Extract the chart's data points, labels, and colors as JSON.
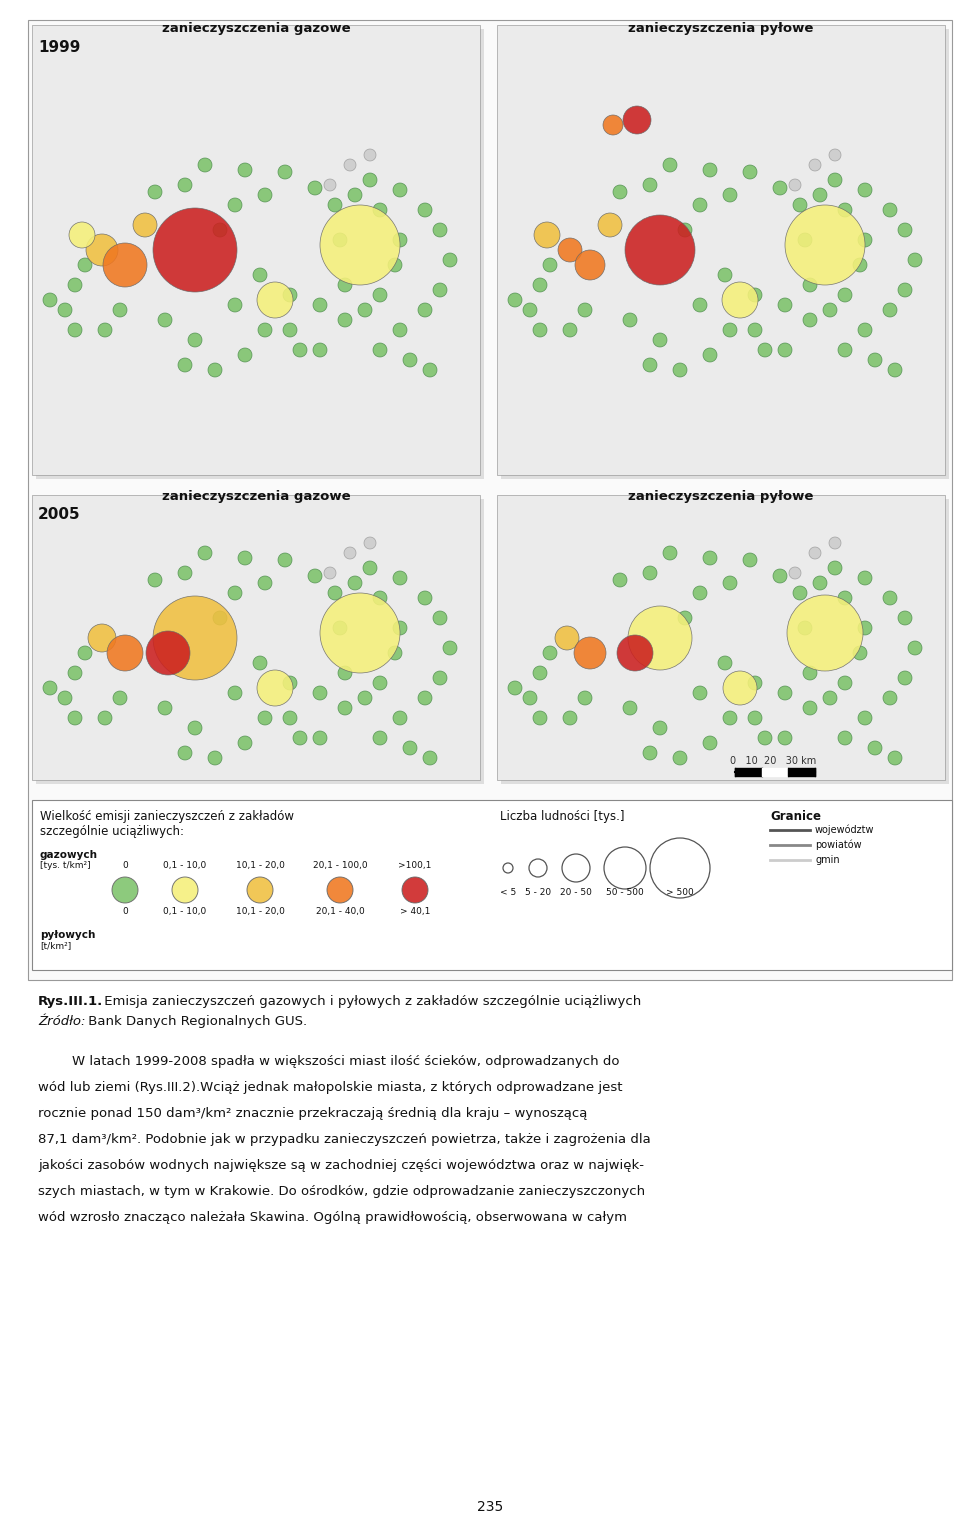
{
  "figure_bg": "#ffffff",
  "title_1999": "1999",
  "title_2005": "2005",
  "label_gaz": "zanieczyszczenia gazowe",
  "label_pyl": "zanieczyszczenia pyłowe",
  "legend_title1": "Wielkość emisji zanieczyszczeń z zakładów",
  "legend_title2": "szczególnie uciążliwych:",
  "legend_gaz_label": "gazowych",
  "legend_gaz_unit": "[tys. t/km²]",
  "legend_pyl_label": "pyłowych",
  "legend_pyl_unit": "[t/km²]",
  "legend_values_gaz": [
    "0",
    "0,1 - 10,0",
    "10,1 - 20,0",
    "20,1 - 100,0",
    ">100,1"
  ],
  "legend_values_pyl": [
    "0",
    "0,1 - 10,0",
    "10,1 - 20,0",
    "20,1 - 40,0",
    "> 40,1"
  ],
  "circle_colors": [
    "#7dc36b",
    "#f5f07a",
    "#f0c040",
    "#f07820",
    "#cc2020"
  ],
  "legend_pop_title": "Liczba ludności [tys.]",
  "legend_pop_labels": [
    "< 5",
    "5 - 20",
    "20 - 50",
    "50 - 500",
    "> 500"
  ],
  "legend_pop_sizes": [
    5,
    9,
    14,
    21,
    30
  ],
  "legend_borders_title": "Granice",
  "legend_borders_items": [
    "województw",
    "powiatów",
    "gmin"
  ],
  "legend_borders_colors": [
    "#555555",
    "#888888",
    "#cccccc"
  ],
  "caption_bold": "Rys.III.1.",
  "caption_text": " Emisja zanieczyszczeń gazowych i pyłowych z zakładów szczególnie uciążliwych",
  "source_italic": "Źródło:",
  "source_text": " Bank Danych Regionalnych GUS.",
  "body_lines": [
    "        W latach 1999-2008 spadła w większości miast ilość ścieków, odprowadzanych do",
    "wód lub ziemi (Rys.III.2).Wciąż jednak małopolskie miasta, z których odprowadzane jest",
    "rocznie ponad 150 dam³/km² znacznie przekraczają średnią dla kraju – wynoszącą",
    "87,1 dam³/km². Podobnie jak w przypadku zanieczyszczeń powietrza, także i zagrożenia dla",
    "jakości zasobów wodnych największe są w zachodniej części województwa oraz w najwięk-",
    "szych miastach, w tym w Krakowie. Do ośrodków, gdzie odprowadzanie zanieczyszczonych",
    "wód wzrosło znacząco należała Skawina. Ogólną prawidłowością, obserwowana w całym"
  ],
  "page_number": "235",
  "colors": {
    "green": "#7dc36b",
    "yellow": "#f5f07a",
    "orange_light": "#f0c040",
    "orange": "#f07820",
    "red": "#cc2020",
    "gray": "#cccccc"
  }
}
